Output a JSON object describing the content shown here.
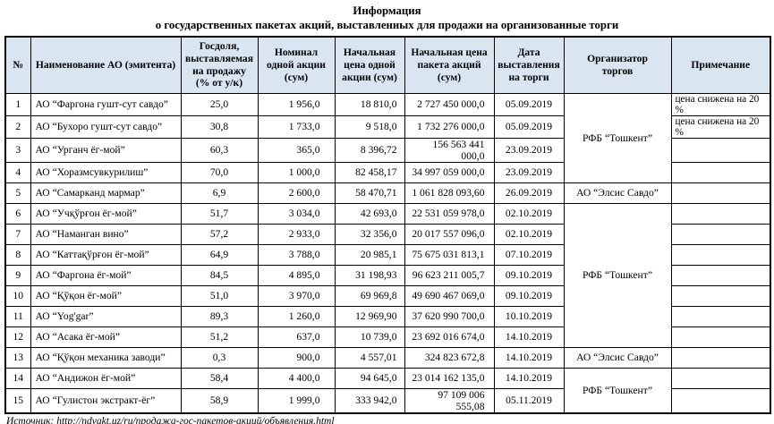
{
  "title": {
    "line1": "Информация",
    "line2": "о государственных пакетах акций, выставленных для продажи на организованные торги"
  },
  "colors": {
    "header_bg": "#d9e6f2",
    "border": "#000000"
  },
  "table": {
    "headers": {
      "num": "№",
      "name": "Наименование АО (эмитента)",
      "share": "Госдоля,\nвыставляемая\nна продажу\n(% от у/к)",
      "nominal": "Номинал\nодной акции\n(сум)",
      "price_share": "Начальная\nцена одной\nакции  (сум)",
      "price_package": "Начальная цена\nпакета акций\n(сум)",
      "date": "Дата\nвыставления\nна торги",
      "organizer": "Организатор\nторгов",
      "note": "Примечание"
    },
    "rows": [
      {
        "num": "1",
        "name": "АО “Фаргона гушт-сут савдо”",
        "share": "25,0",
        "nominal": "1 956,0",
        "price_share": "18 810,0",
        "price_package": "2 727 450 000,0",
        "date": "05.09.2019",
        "note": "цена снижена на 20 %"
      },
      {
        "num": "2",
        "name": "АО “Бухоро гушт-сут савдо”",
        "share": "30,8",
        "nominal": "1 733,0",
        "price_share": "9 518,0",
        "price_package": "1 732 276 000,0",
        "date": "05.09.2019",
        "note": "цена снижена на 20 %"
      },
      {
        "num": "3",
        "name": "АО “Урганч ёг-мой”",
        "share": "60,3",
        "nominal": "365,0",
        "price_share": "8 396,72",
        "price_package": "156 563 441 000,0",
        "date": "23.09.2019",
        "note": ""
      },
      {
        "num": "4",
        "name": "АО “Хоразмсувкурилиш”",
        "share": "70,0",
        "nominal": "1 000,0",
        "price_share": "82 458,17",
        "price_package": "34 997 059 000,0",
        "date": "23.09.2019",
        "note": ""
      },
      {
        "num": "5",
        "name": "АО “Самарканд мармар”",
        "share": "6,9",
        "nominal": "2 600,0",
        "price_share": "58 470,71",
        "price_package": "1 061 828 093,60",
        "date": "26.09.2019",
        "note": ""
      },
      {
        "num": "6",
        "name": "АО “Учқўрғон ёг-мой”",
        "share": "51,7",
        "nominal": "3 034,0",
        "price_share": "42 693,0",
        "price_package": "22 531 059 978,0",
        "date": "02.10.2019",
        "note": ""
      },
      {
        "num": "7",
        "name": "АО “Наманган вино”",
        "share": "57,2",
        "nominal": "2 933,0",
        "price_share": "32 356,0",
        "price_package": "20 017 557 096,0",
        "date": "02.10.2019",
        "note": ""
      },
      {
        "num": "8",
        "name": "АО “Каттақўрғон ёг-мой”",
        "share": "64,9",
        "nominal": "3 788,0",
        "price_share": "20 985,1",
        "price_package": "75 675 031 813,1",
        "date": "07.10.2019",
        "note": ""
      },
      {
        "num": "9",
        "name": "АО “Фаргона ёг-мой”",
        "share": "84,5",
        "nominal": "4 895,0",
        "price_share": "31 198,93",
        "price_package": "96 623 211 005,7",
        "date": "09.10.2019",
        "note": ""
      },
      {
        "num": "10",
        "name": "АО “Қўқон ёг-мой”",
        "share": "51,0",
        "nominal": "3 970,0",
        "price_share": "69 969,8",
        "price_package": "49 690 467 069,0",
        "date": "09.10.2019",
        "note": ""
      },
      {
        "num": "11",
        "name": "АО “Yog'gar”",
        "share": "89,3",
        "nominal": "1 260,0",
        "price_share": "12 969,90",
        "price_package": "37 620 990 700,0",
        "date": "10.10.2019",
        "note": ""
      },
      {
        "num": "12",
        "name": "АО “Асака ёг-мой”",
        "share": "51,2",
        "nominal": "637,0",
        "price_share": "10 739,0",
        "price_package": "23 692 016 674,0",
        "date": "14.10.2019",
        "note": ""
      },
      {
        "num": "13",
        "name": "АО “Қўқон механика заводи”",
        "share": "0,3",
        "nominal": "900,0",
        "price_share": "4 557,01",
        "price_package": "324 823 672,8",
        "date": "14.10.2019",
        "note": ""
      },
      {
        "num": "14",
        "name": "АО “Андижон ёг-мой”",
        "share": "58,4",
        "nominal": "4 400,0",
        "price_share": "94 645,0",
        "price_package": "23 014 162 135,0",
        "date": "14.10.2019",
        "note": ""
      },
      {
        "num": "15",
        "name": "АО “Гулистон экстракт-ёг”",
        "share": "58,9",
        "nominal": "1 999,0",
        "price_share": "333 942,0",
        "price_package": "97 109 006 555,08",
        "date": "05.11.2019",
        "note": ""
      }
    ],
    "organizer_groups": [
      {
        "label": "РФБ “Тошкент”",
        "rows": 4
      },
      {
        "label": "АО “Элсис Савдо”",
        "rows": 1
      },
      {
        "label": "РФБ “Тошкент”",
        "rows": 7
      },
      {
        "label": "АО “Элсис Савдо”",
        "rows": 1
      },
      {
        "label": "РФБ “Тошкент”",
        "rows": 2
      }
    ]
  },
  "source": "Источник: http://ndvakt.uz/ru/продажа-гос-пакетов-акций/объявления.html"
}
